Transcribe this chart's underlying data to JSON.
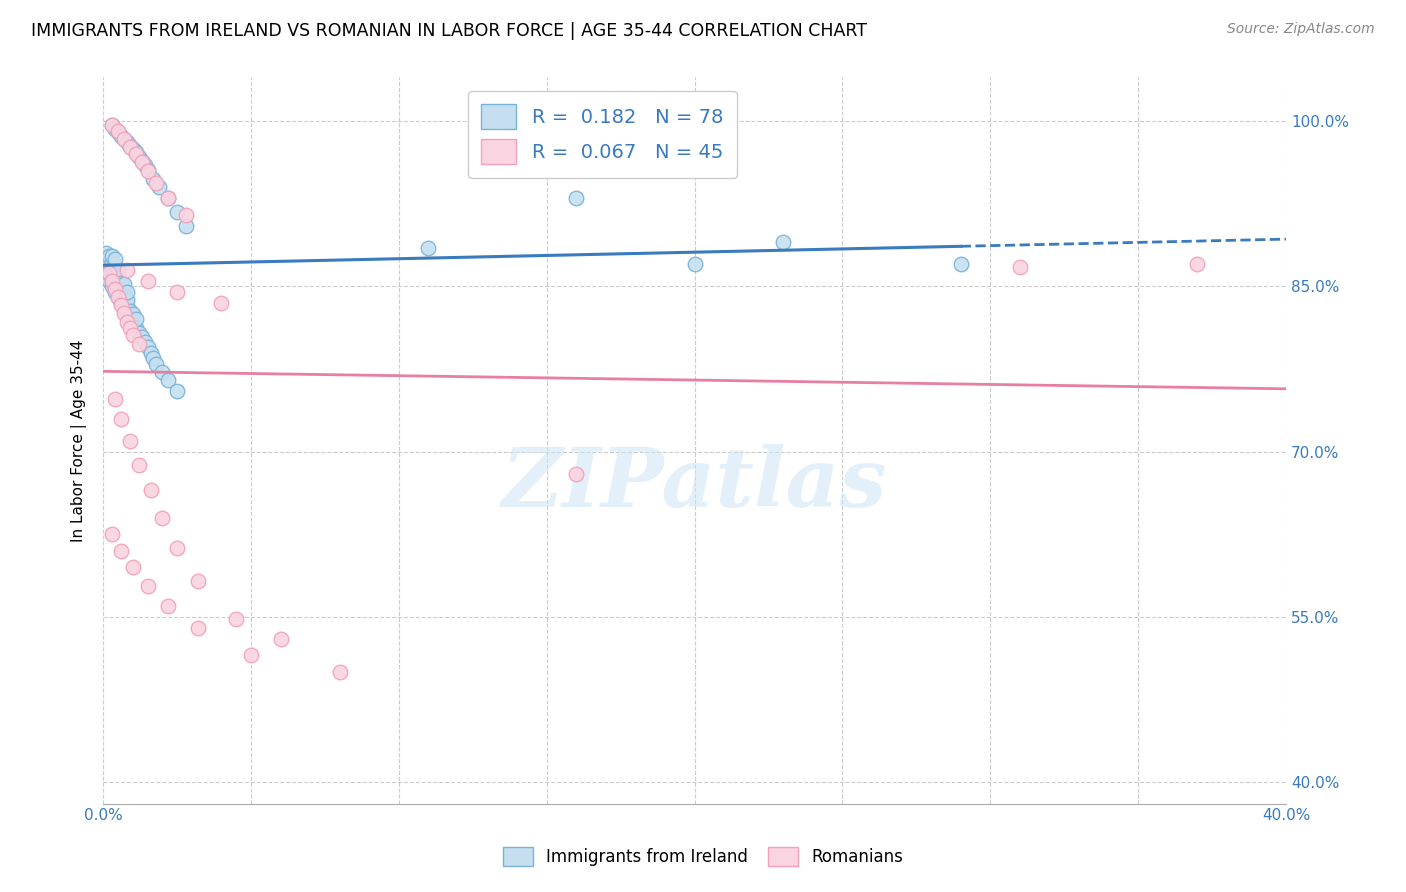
{
  "title": "IMMIGRANTS FROM IRELAND VS ROMANIAN IN LABOR FORCE | AGE 35-44 CORRELATION CHART",
  "source": "Source: ZipAtlas.com",
  "ylabel": "In Labor Force | Age 35-44",
  "xlim": [
    0.0,
    0.4
  ],
  "ylim": [
    0.38,
    1.04
  ],
  "xticks": [
    0.0,
    0.05,
    0.1,
    0.15,
    0.2,
    0.25,
    0.3,
    0.35,
    0.4
  ],
  "yticks": [
    0.4,
    0.55,
    0.7,
    0.85,
    1.0
  ],
  "ytick_labels": [
    "40.0%",
    "55.0%",
    "70.0%",
    "85.0%",
    "100.0%"
  ],
  "xtick_labels": [
    "0.0%",
    "",
    "",
    "",
    "",
    "",
    "",
    "",
    "40.0%"
  ],
  "blue_edge": "#7ab3d9",
  "blue_fill": "#c5dff0",
  "pink_edge": "#f4a0b8",
  "pink_fill": "#fad4e0",
  "line_blue": "#3a7abf",
  "line_pink": "#e87fa0",
  "legend_R_blue": "0.182",
  "legend_N_blue": "78",
  "legend_R_pink": "0.067",
  "legend_N_pink": "45",
  "watermark": "ZIPatlas",
  "ireland_x": [
    0.001,
    0.001,
    0.001,
    0.002,
    0.002,
    0.002,
    0.002,
    0.003,
    0.003,
    0.003,
    0.003,
    0.003,
    0.003,
    0.003,
    0.004,
    0.004,
    0.004,
    0.004,
    0.004,
    0.004,
    0.004,
    0.005,
    0.005,
    0.005,
    0.005,
    0.005,
    0.006,
    0.006,
    0.006,
    0.006,
    0.007,
    0.007,
    0.007,
    0.007,
    0.007,
    0.008,
    0.008,
    0.008,
    0.008,
    0.009,
    0.009,
    0.01,
    0.01,
    0.011,
    0.011,
    0.012,
    0.013,
    0.014,
    0.015,
    0.016,
    0.017,
    0.018,
    0.02,
    0.022,
    0.025,
    0.003,
    0.004,
    0.005,
    0.006,
    0.007,
    0.008,
    0.009,
    0.01,
    0.011,
    0.012,
    0.013,
    0.014,
    0.015,
    0.017,
    0.019,
    0.022,
    0.025,
    0.028,
    0.11,
    0.16,
    0.2,
    0.23,
    0.29
  ],
  "ireland_y": [
    0.87,
    0.875,
    0.88,
    0.855,
    0.862,
    0.87,
    0.878,
    0.85,
    0.855,
    0.86,
    0.865,
    0.868,
    0.872,
    0.878,
    0.845,
    0.85,
    0.855,
    0.86,
    0.865,
    0.87,
    0.875,
    0.84,
    0.845,
    0.85,
    0.858,
    0.864,
    0.835,
    0.84,
    0.847,
    0.853,
    0.83,
    0.835,
    0.84,
    0.845,
    0.852,
    0.826,
    0.832,
    0.838,
    0.845,
    0.822,
    0.828,
    0.818,
    0.825,
    0.812,
    0.82,
    0.808,
    0.804,
    0.8,
    0.795,
    0.79,
    0.785,
    0.78,
    0.772,
    0.765,
    0.755,
    0.997,
    0.993,
    0.99,
    0.987,
    0.984,
    0.981,
    0.978,
    0.975,
    0.972,
    0.968,
    0.964,
    0.96,
    0.956,
    0.948,
    0.94,
    0.93,
    0.918,
    0.905,
    0.885,
    0.93,
    0.87,
    0.89,
    0.87
  ],
  "romanian_x": [
    0.002,
    0.003,
    0.004,
    0.005,
    0.006,
    0.007,
    0.008,
    0.009,
    0.01,
    0.012,
    0.003,
    0.005,
    0.007,
    0.009,
    0.011,
    0.013,
    0.015,
    0.018,
    0.022,
    0.028,
    0.004,
    0.006,
    0.009,
    0.012,
    0.016,
    0.02,
    0.025,
    0.032,
    0.045,
    0.06,
    0.003,
    0.006,
    0.01,
    0.015,
    0.022,
    0.032,
    0.05,
    0.08,
    0.008,
    0.015,
    0.025,
    0.04,
    0.16,
    0.31,
    0.37
  ],
  "romanian_y": [
    0.862,
    0.855,
    0.848,
    0.84,
    0.833,
    0.826,
    0.818,
    0.812,
    0.806,
    0.798,
    0.997,
    0.991,
    0.984,
    0.977,
    0.97,
    0.963,
    0.955,
    0.944,
    0.93,
    0.915,
    0.748,
    0.73,
    0.71,
    0.688,
    0.665,
    0.64,
    0.612,
    0.582,
    0.548,
    0.53,
    0.625,
    0.61,
    0.595,
    0.578,
    0.56,
    0.54,
    0.515,
    0.5,
    0.865,
    0.855,
    0.845,
    0.835,
    0.68,
    0.868,
    0.87
  ]
}
